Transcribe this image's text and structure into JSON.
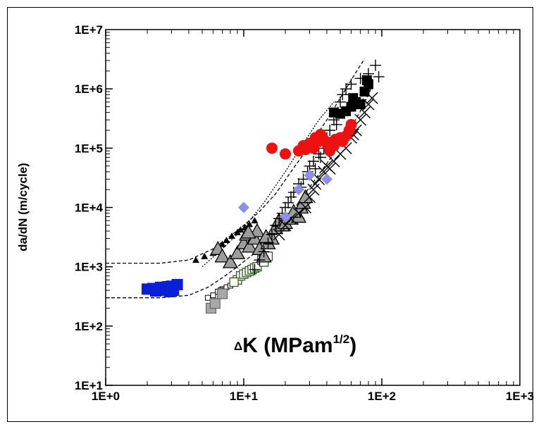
{
  "chart_data": {
    "type": "scatter",
    "xscale": "log",
    "yscale": "log",
    "xlim": [
      1,
      1000
    ],
    "ylim": [
      10,
      10000000
    ],
    "x_ticks": [
      "1E+0",
      "1E+1",
      "1E+2",
      "1E+3"
    ],
    "y_ticks": [
      "1E+1",
      "1E+2",
      "1E+3",
      "1E+4",
      "1E+5",
      "1E+6",
      "1E+7"
    ],
    "ylabel": "da/dN (m/cycle)",
    "xlabel_parts": {
      "delta": "Δ",
      "main": "K (MPam",
      "sup": "1/2",
      "end": ")"
    },
    "grid": false,
    "legend": "none",
    "series": [
      {
        "marker": "square-filled",
        "color": "#0a1fd6",
        "points": [
          [
            2.0,
            420
          ],
          [
            2.2,
            430
          ],
          [
            2.4,
            400
          ],
          [
            2.5,
            450
          ],
          [
            2.7,
            420
          ],
          [
            2.9,
            380
          ],
          [
            3.0,
            470
          ],
          [
            3.1,
            400
          ],
          [
            3.3,
            500
          ],
          [
            2.3,
            390
          ],
          [
            2.8,
            460
          ]
        ]
      },
      {
        "marker": "triangle-filled-small",
        "color": "#000000",
        "points": [
          [
            4.5,
            1300
          ],
          [
            5.2,
            1500
          ],
          [
            6.0,
            1700
          ],
          [
            6.5,
            2000
          ],
          [
            7.0,
            2400
          ],
          [
            7.5,
            2800
          ],
          [
            8.2,
            3300
          ],
          [
            9.0,
            3800
          ],
          [
            9.5,
            4200
          ],
          [
            10.2,
            4600
          ],
          [
            11.0,
            5200
          ],
          [
            12.0,
            6000
          ]
        ]
      },
      {
        "marker": "square-open-small",
        "color": "#000000",
        "points": [
          [
            5.5,
            300
          ],
          [
            6.0,
            330
          ],
          [
            6.5,
            380
          ],
          [
            7.0,
            420
          ],
          [
            7.5,
            450
          ],
          [
            8.0,
            480
          ],
          [
            6.8,
            400
          ]
        ]
      },
      {
        "marker": "square-gray",
        "color": "#a8a8a8",
        "points": [
          [
            5.8,
            200
          ],
          [
            6.2,
            240
          ],
          [
            7.0,
            350
          ]
        ]
      },
      {
        "marker": "square-open-green",
        "color": "#2e5a1c",
        "points": [
          [
            9.0,
            600
          ],
          [
            9.5,
            700
          ],
          [
            10.0,
            750
          ],
          [
            10.5,
            800
          ],
          [
            11.0,
            850
          ],
          [
            11.5,
            900
          ],
          [
            12.0,
            950
          ],
          [
            12.5,
            1000
          ],
          [
            13.5,
            1300
          ],
          [
            15.0,
            1500
          ],
          [
            14.0,
            1200
          ],
          [
            8.5,
            550
          ]
        ]
      },
      {
        "marker": "triangle-gray-large",
        "color": "#9c9c9c",
        "points": [
          [
            6.5,
            2000
          ],
          [
            7.0,
            1500
          ],
          [
            8.0,
            1200
          ],
          [
            9.0,
            1700
          ],
          [
            10.0,
            2500
          ],
          [
            10.5,
            3500
          ],
          [
            11.0,
            2200
          ],
          [
            12.0,
            3000
          ],
          [
            12.5,
            4000
          ],
          [
            13.0,
            2000
          ],
          [
            14.0,
            1500
          ],
          [
            15.0,
            2500
          ],
          [
            16.0,
            3000
          ],
          [
            17.0,
            4500
          ],
          [
            18.0,
            6000
          ],
          [
            19.0,
            5000
          ],
          [
            20.0,
            5500
          ],
          [
            22.0,
            6500
          ],
          [
            25.0,
            7000
          ],
          [
            26.0,
            10000
          ],
          [
            27.0,
            12000
          ],
          [
            28.0,
            15000
          ],
          [
            10.8,
            3800
          ],
          [
            14.5,
            3200
          ],
          [
            23.0,
            8500
          ]
        ]
      },
      {
        "marker": "plus",
        "color": "#000000",
        "points": [
          [
            12.0,
            900
          ],
          [
            13.0,
            1300
          ],
          [
            14.0,
            1800
          ],
          [
            15.0,
            2500
          ],
          [
            16.0,
            3500
          ],
          [
            17.0,
            5000
          ],
          [
            18.0,
            6500
          ],
          [
            19.0,
            8000
          ],
          [
            20.0,
            10000
          ],
          [
            21.0,
            12000
          ],
          [
            22.0,
            15000
          ],
          [
            23.0,
            18000
          ],
          [
            25.0,
            25000
          ],
          [
            27.0,
            30000
          ],
          [
            29.0,
            40000
          ],
          [
            30.0,
            50000
          ],
          [
            32.0,
            60000
          ],
          [
            35.0,
            80000
          ],
          [
            38.0,
            100000
          ],
          [
            40.0,
            150000
          ],
          [
            42.0,
            200000
          ],
          [
            45.0,
            300000
          ],
          [
            48.0,
            400000
          ],
          [
            50.0,
            600000
          ],
          [
            52.0,
            800000
          ],
          [
            55.0,
            1000000
          ],
          [
            60.0,
            1200000
          ],
          [
            70.0,
            1500000
          ],
          [
            80.0,
            1800000
          ],
          [
            90.0,
            2500000
          ],
          [
            95.0,
            1600000
          ],
          [
            26.0,
            22000
          ],
          [
            33.0,
            45000
          ],
          [
            44.0,
            120000
          ],
          [
            47.0,
            250000
          ],
          [
            36.0,
            70000
          ]
        ]
      },
      {
        "marker": "x",
        "color": "#000000",
        "points": [
          [
            18.0,
            3500
          ],
          [
            20.0,
            5000
          ],
          [
            22.0,
            6500
          ],
          [
            25.0,
            8000
          ],
          [
            28.0,
            10000
          ],
          [
            30.0,
            15000
          ],
          [
            32.0,
            20000
          ],
          [
            35.0,
            30000
          ],
          [
            38.0,
            40000
          ],
          [
            40.0,
            50000
          ],
          [
            45.0,
            60000
          ],
          [
            50.0,
            80000
          ],
          [
            55.0,
            100000
          ],
          [
            60.0,
            150000
          ],
          [
            65.0,
            200000
          ],
          [
            70.0,
            300000
          ],
          [
            75.0,
            400000
          ],
          [
            80.0,
            550000
          ],
          [
            85.0,
            700000
          ],
          [
            42.0,
            45000
          ],
          [
            33.0,
            25000
          ],
          [
            62.0,
            170000
          ]
        ]
      },
      {
        "marker": "circle-filled",
        "color": "#ee1111",
        "points": [
          [
            16.0,
            100000
          ],
          [
            20.0,
            80000
          ],
          [
            25.0,
            90000
          ],
          [
            27.0,
            110000
          ],
          [
            30.0,
            120000
          ],
          [
            32.0,
            100000
          ],
          [
            35.0,
            130000
          ],
          [
            38.0,
            140000
          ],
          [
            40.0,
            120000
          ],
          [
            42.0,
            90000
          ],
          [
            45.0,
            110000
          ],
          [
            50.0,
            150000
          ],
          [
            55.0,
            160000
          ],
          [
            58.0,
            200000
          ],
          [
            60.0,
            250000
          ],
          [
            36.0,
            170000
          ],
          [
            33.0,
            150000
          ],
          [
            28.0,
            95000
          ],
          [
            46.0,
            140000
          ],
          [
            52.0,
            130000
          ]
        ]
      },
      {
        "marker": "square-filled-black",
        "color": "#000000",
        "points": [
          [
            45.0,
            400000
          ],
          [
            50.0,
            380000
          ],
          [
            55.0,
            420000
          ],
          [
            60.0,
            500000
          ],
          [
            65.0,
            600000
          ],
          [
            70.0,
            550000
          ],
          [
            75.0,
            900000
          ],
          [
            80.0,
            1200000
          ],
          [
            78.0,
            1400000
          ],
          [
            62.0,
            700000
          ]
        ]
      },
      {
        "marker": "diamond",
        "color": "#8f8fe8",
        "points": [
          [
            10.0,
            10000
          ],
          [
            20.0,
            7000
          ],
          [
            30.0,
            35000
          ],
          [
            40.0,
            30000
          ],
          [
            25.0,
            20000
          ]
        ]
      }
    ],
    "bounds": [
      {
        "style": "dashed",
        "points": [
          [
            1.0,
            1150
          ],
          [
            2.5,
            1150
          ],
          [
            4.0,
            1300
          ],
          [
            6.0,
            2000
          ],
          [
            8.0,
            3300
          ],
          [
            10.0,
            5000
          ],
          [
            13.0,
            8500
          ],
          [
            17.0,
            17000
          ],
          [
            22.0,
            40000
          ],
          [
            30.0,
            110000
          ],
          [
            40.0,
            300000
          ],
          [
            50.0,
            700000
          ],
          [
            65.0,
            1900000
          ],
          [
            75.0,
            3200000
          ]
        ]
      },
      {
        "style": "dashed",
        "points": [
          [
            1.0,
            300
          ],
          [
            2.5,
            300
          ],
          [
            4.0,
            330
          ],
          [
            5.5,
            450
          ],
          [
            7.0,
            650
          ],
          [
            9.0,
            1000
          ],
          [
            12.0,
            1700
          ],
          [
            16.0,
            3300
          ],
          [
            22.0,
            8000
          ],
          [
            30.0,
            22000
          ],
          [
            40.0,
            55000
          ],
          [
            55.0,
            160000
          ],
          [
            70.0,
            420000
          ],
          [
            85.0,
            1100000
          ]
        ]
      },
      {
        "style": "dotted",
        "points": [
          [
            5.0,
            1000
          ],
          [
            7.0,
            2000
          ],
          [
            10.0,
            4500
          ],
          [
            14.0,
            12000
          ],
          [
            20.0,
            40000
          ],
          [
            27.0,
            120000
          ],
          [
            35.0,
            300000
          ],
          [
            45.0,
            600000
          ]
        ]
      }
    ]
  }
}
